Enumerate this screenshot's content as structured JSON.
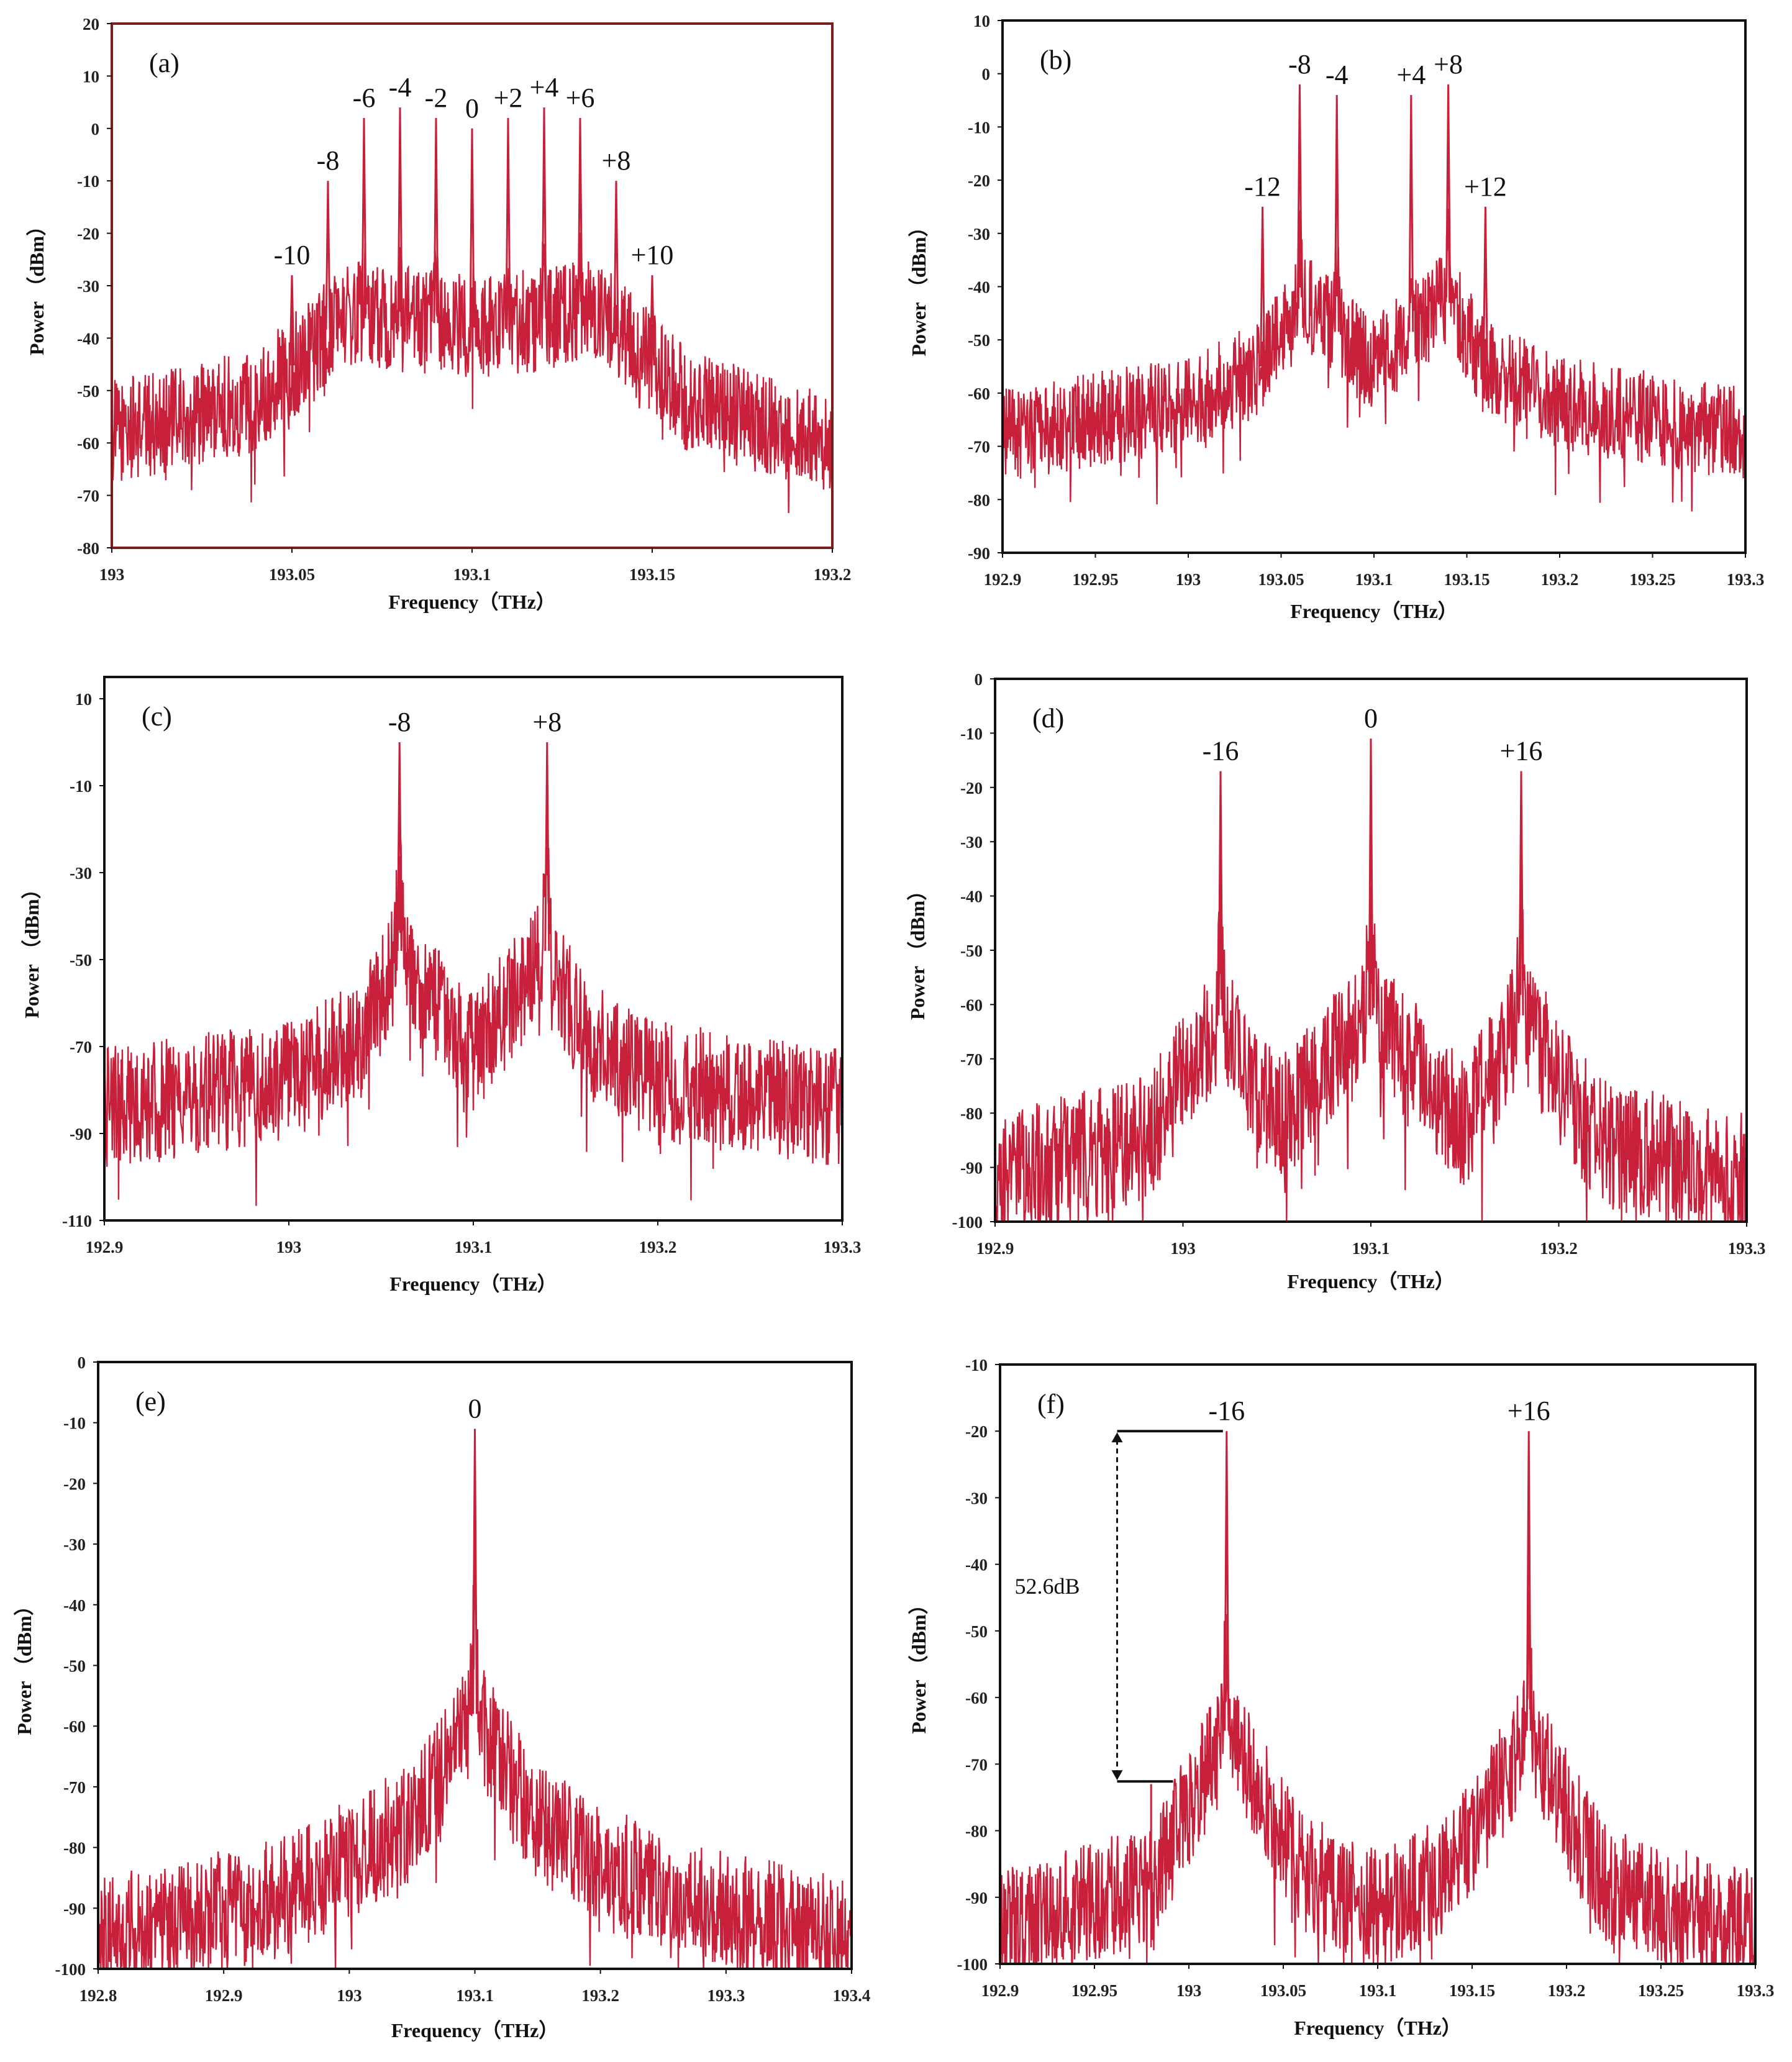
{
  "figure": {
    "description": "Six optical spectra (a)-(f), Power (dBm) vs Frequency (THz)"
  },
  "colors": {
    "trace": "#c8203a",
    "axis": "#111111",
    "frame_a": "#7a1e1e"
  },
  "chart_data": [
    {
      "type": "line",
      "panel_label": "(a)",
      "xlabel": "Frequency（THz）",
      "ylabel": "Power （dBm）",
      "xlim": [
        193,
        193.2
      ],
      "ylim": [
        -80,
        20
      ],
      "x_ticks": [
        193,
        193.05,
        193.1,
        193.15,
        193.2
      ],
      "x_tick_labels": [
        "193",
        "193.05",
        "193.1",
        "193.15",
        "193.2"
      ],
      "y_ticks": [
        -80,
        -70,
        -60,
        -50,
        -40,
        -30,
        -20,
        -10,
        0,
        10,
        20
      ],
      "y_tick_labels": [
        "-80",
        "-70",
        "-60",
        "-50",
        "-40",
        "-30",
        "-20",
        "-10",
        "0",
        "10",
        "20"
      ],
      "noise_floor": [
        [
          193,
          -58
        ],
        [
          193.04,
          -52
        ],
        [
          193.065,
          -35
        ],
        [
          193.1,
          -38
        ],
        [
          193.135,
          -35
        ],
        [
          193.16,
          -52
        ],
        [
          193.2,
          -60
        ]
      ],
      "noise_amplitude": 10,
      "peaks": [
        {
          "label": "-10",
          "x": 193.05,
          "y": -28
        },
        {
          "label": "-8",
          "x": 193.06,
          "y": -10
        },
        {
          "label": "-6",
          "x": 193.07,
          "y": 2
        },
        {
          "label": "-4",
          "x": 193.08,
          "y": 4
        },
        {
          "label": "-2",
          "x": 193.09,
          "y": 2
        },
        {
          "label": "0",
          "x": 193.1,
          "y": 0
        },
        {
          "label": "+2",
          "x": 193.11,
          "y": 2
        },
        {
          "label": "+4",
          "x": 193.12,
          "y": 4
        },
        {
          "label": "+6",
          "x": 193.13,
          "y": 2
        },
        {
          "label": "+8",
          "x": 193.14,
          "y": -10
        },
        {
          "label": "+10",
          "x": 193.15,
          "y": -28
        }
      ]
    },
    {
      "type": "line",
      "panel_label": "(b)",
      "xlabel": "Frequency（THz）",
      "ylabel": "Power （dBm）",
      "xlim": [
        192.9,
        193.3
      ],
      "ylim": [
        -90,
        10
      ],
      "x_ticks": [
        192.9,
        192.95,
        193,
        193.05,
        193.1,
        193.15,
        193.2,
        193.25,
        193.3
      ],
      "x_tick_labels": [
        "192.9",
        "192.95",
        "193",
        "193.05",
        "193.1",
        "193.15",
        "193.2",
        "193.25",
        "193.3"
      ],
      "y_ticks": [
        -90,
        -80,
        -70,
        -60,
        -50,
        -40,
        -30,
        -20,
        -10,
        0,
        10
      ],
      "y_tick_labels": [
        "-90",
        "-80",
        "-70",
        "-60",
        "-50",
        "-40",
        "-30",
        "-20",
        "-10",
        "0",
        "10"
      ],
      "noise_floor": [
        [
          192.9,
          -68
        ],
        [
          193.0,
          -62
        ],
        [
          193.04,
          -55
        ],
        [
          193.06,
          -42
        ],
        [
          193.1,
          -55
        ],
        [
          193.14,
          -42
        ],
        [
          193.16,
          -55
        ],
        [
          193.2,
          -62
        ],
        [
          193.3,
          -68
        ]
      ],
      "noise_amplitude": 9,
      "peaks": [
        {
          "label": "-12",
          "x": 193.04,
          "y": -25
        },
        {
          "label": "-8",
          "x": 193.06,
          "y": -2
        },
        {
          "label": "-4",
          "x": 193.08,
          "y": -4
        },
        {
          "label": "+4",
          "x": 193.12,
          "y": -4
        },
        {
          "label": "+8",
          "x": 193.14,
          "y": -2
        },
        {
          "label": "+12",
          "x": 193.16,
          "y": -25
        }
      ]
    },
    {
      "type": "line",
      "panel_label": "(c)",
      "xlabel": "Frequency（THz）",
      "ylabel": "Power （dBm）",
      "xlim": [
        192.9,
        193.3
      ],
      "ylim": [
        -110,
        15
      ],
      "x_ticks": [
        192.9,
        193,
        193.1,
        193.2,
        193.3
      ],
      "x_tick_labels": [
        "192.9",
        "193",
        "193.1",
        "193.2",
        "193.3"
      ],
      "y_ticks": [
        -110,
        -90,
        -70,
        -50,
        -30,
        -10,
        10
      ],
      "y_tick_labels": [
        "-110",
        "-90",
        "-70",
        "-50",
        "-30",
        "-10",
        "10"
      ],
      "noise_floor": [
        [
          192.9,
          -84
        ],
        [
          193.0,
          -78
        ],
        [
          193.04,
          -68
        ],
        [
          193.06,
          -48
        ],
        [
          193.1,
          -72
        ],
        [
          193.14,
          -48
        ],
        [
          193.16,
          -68
        ],
        [
          193.2,
          -78
        ],
        [
          193.3,
          -84
        ]
      ],
      "noise_amplitude": 14,
      "peaks": [
        {
          "label": "-8",
          "x": 193.06,
          "y": 0
        },
        {
          "label": "+8",
          "x": 193.14,
          "y": 0
        }
      ]
    },
    {
      "type": "line",
      "panel_label": "(d)",
      "xlabel": "Frequency（THz）",
      "ylabel": "Power （dBm）",
      "xlim": [
        192.9,
        193.3
      ],
      "ylim": [
        -100,
        0
      ],
      "x_ticks": [
        192.9,
        193,
        193.1,
        193.2,
        193.3
      ],
      "x_tick_labels": [
        "192.9",
        "193",
        "193.1",
        "193.2",
        "193.3"
      ],
      "y_ticks": [
        -100,
        -90,
        -80,
        -70,
        -60,
        -50,
        -40,
        -30,
        -20,
        -10,
        0
      ],
      "y_tick_labels": [
        "-100",
        "-90",
        "-80",
        "-70",
        "-60",
        "-50",
        "-40",
        "-30",
        "-20",
        "-10",
        "0"
      ],
      "noise_floor": [
        [
          192.9,
          -92
        ],
        [
          192.98,
          -85
        ],
        [
          193.02,
          -62
        ],
        [
          193.05,
          -82
        ],
        [
          193.1,
          -62
        ],
        [
          193.15,
          -82
        ],
        [
          193.18,
          -62
        ],
        [
          193.22,
          -85
        ],
        [
          193.3,
          -92
        ]
      ],
      "noise_amplitude": 12,
      "peaks": [
        {
          "label": "-16",
          "x": 193.02,
          "y": -17
        },
        {
          "label": "0",
          "x": 193.1,
          "y": -11
        },
        {
          "label": "+16",
          "x": 193.18,
          "y": -17
        }
      ]
    },
    {
      "type": "line",
      "panel_label": "(e)",
      "xlabel": "Frequency（THz）",
      "ylabel": "Power （dBm）",
      "xlim": [
        192.8,
        193.4
      ],
      "ylim": [
        -100,
        0
      ],
      "x_ticks": [
        192.8,
        192.9,
        193,
        193.1,
        193.2,
        193.3,
        193.4
      ],
      "x_tick_labels": [
        "192.8",
        "192.9",
        "193",
        "193.1",
        "193.2",
        "193.3",
        "193.4"
      ],
      "y_ticks": [
        -100,
        -90,
        -80,
        -70,
        -60,
        -50,
        -40,
        -30,
        -20,
        -10,
        0
      ],
      "y_tick_labels": [
        "-100",
        "-90",
        "-80",
        "-70",
        "-60",
        "-50",
        "-40",
        "-30",
        "-20",
        "-10",
        "0"
      ],
      "noise_floor": [
        [
          192.8,
          -95
        ],
        [
          192.95,
          -88
        ],
        [
          193.05,
          -76
        ],
        [
          193.1,
          -58
        ],
        [
          193.15,
          -76
        ],
        [
          193.25,
          -88
        ],
        [
          193.4,
          -95
        ]
      ],
      "noise_amplitude": 10,
      "peaks": [
        {
          "label": "0",
          "x": 193.1,
          "y": -11
        }
      ]
    },
    {
      "type": "line",
      "panel_label": "(f)",
      "xlabel": "Frequency（THz）",
      "ylabel": "Power （dBm）",
      "xlim": [
        192.9,
        193.3
      ],
      "ylim": [
        -100,
        -10
      ],
      "x_ticks": [
        192.9,
        192.95,
        193,
        193.05,
        193.1,
        193.15,
        193.2,
        193.25,
        193.3
      ],
      "x_tick_labels": [
        "192.9",
        "192.95",
        "193",
        "193.05",
        "193.1",
        "193.15",
        "193.2",
        "193.25",
        "193.3"
      ],
      "y_ticks": [
        -100,
        -90,
        -80,
        -70,
        -60,
        -50,
        -40,
        -30,
        -20,
        -10
      ],
      "y_tick_labels": [
        "-100",
        "-90",
        "-80",
        "-70",
        "-60",
        "-50",
        "-40",
        "-30",
        "-20",
        "-10"
      ],
      "noise_floor": [
        [
          192.9,
          -95
        ],
        [
          192.98,
          -88
        ],
        [
          193.02,
          -65
        ],
        [
          193.06,
          -86
        ],
        [
          193.1,
          -92
        ],
        [
          193.14,
          -86
        ],
        [
          193.18,
          -65
        ],
        [
          193.22,
          -88
        ],
        [
          193.3,
          -95
        ]
      ],
      "noise_amplitude": 9,
      "peaks": [
        {
          "label": "-16",
          "x": 193.02,
          "y": -20
        },
        {
          "label": "+16",
          "x": 193.18,
          "y": -20
        }
      ],
      "extra_spikes": [
        {
          "x": 192.98,
          "y": -73
        }
      ],
      "annotation": {
        "text": "52.6dB",
        "top_y": -20,
        "bottom_y": -72.6,
        "arrow_x": 192.962
      }
    }
  ]
}
